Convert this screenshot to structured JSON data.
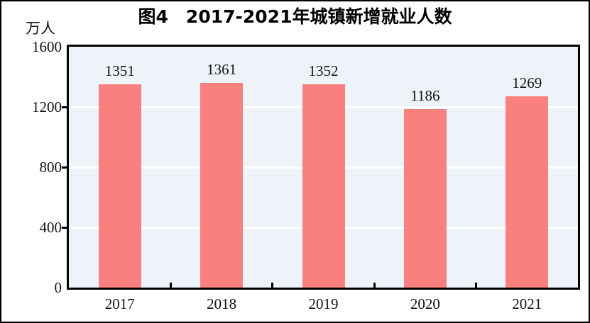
{
  "figure": {
    "title": "图4　2017-2021年城镇新增就业人数",
    "unit_label": "万人"
  },
  "chart_data": {
    "type": "bar",
    "title": "图4　2017-2021年城镇新增就业人数",
    "categories": [
      "2017",
      "2018",
      "2019",
      "2020",
      "2021"
    ],
    "values": [
      1351,
      1361,
      1352,
      1186,
      1269
    ],
    "xlabel": "",
    "ylabel": "万人",
    "ylim": [
      0,
      1600
    ],
    "yticks": [
      0,
      400,
      800,
      1200,
      1600
    ],
    "grid": true,
    "gridline_values": [
      400,
      800,
      1200
    ],
    "legend": "none",
    "bar_color": "#FA8080",
    "plot_bg": "#EDF3F8",
    "gridline_color": "#FFFFFF",
    "axis_color": "#000000",
    "text_color": "#141414"
  }
}
